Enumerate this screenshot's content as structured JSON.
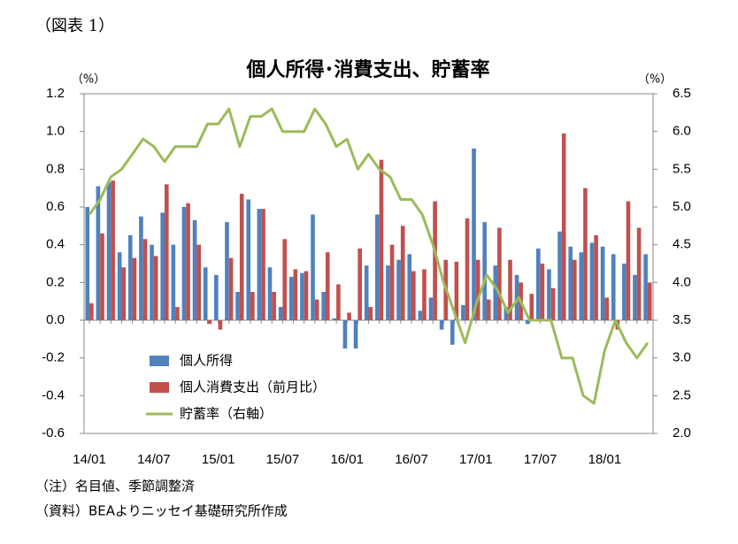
{
  "header": "（図表 1）",
  "notes": [
    "（注）名目値、季節調整済",
    "（資料）BEAよりニッセイ基礎研究所作成"
  ],
  "chart_data": {
    "type": "bar",
    "title": "個人所得･消費支出、貯蓄率",
    "y_unit": "（%）",
    "y2_unit": "（%）",
    "categories": [
      "14/01",
      null,
      null,
      null,
      null,
      null,
      "14/07",
      null,
      null,
      null,
      null,
      null,
      "15/01",
      null,
      null,
      null,
      null,
      null,
      "15/07",
      null,
      null,
      null,
      null,
      null,
      "16/01",
      null,
      null,
      null,
      null,
      null,
      "16/07",
      null,
      null,
      null,
      null,
      null,
      "17/01",
      null,
      null,
      null,
      null,
      null,
      "17/07",
      null,
      null,
      null,
      null,
      null,
      "18/01",
      null,
      null,
      null,
      null
    ],
    "ylim": [
      -0.6,
      1.2
    ],
    "yticks": [
      -0.6,
      -0.4,
      -0.2,
      {
        "value": 0,
        "label": "0.0"
      },
      0.2,
      0.4,
      0.6,
      0.8,
      {
        "value": 1,
        "label": "1.0"
      },
      1.2
    ],
    "y2lim": [
      2,
      6.5
    ],
    "y2ticks": [
      {
        "value": 2,
        "label": "2.0"
      },
      2.5,
      {
        "value": 3,
        "label": "3.0"
      },
      3.5,
      {
        "value": 4,
        "label": "4.0"
      },
      4.5,
      {
        "value": 5,
        "label": "5.0"
      },
      5.5,
      {
        "value": 6,
        "label": "6.0"
      },
      6.5
    ],
    "legend": "lower-left",
    "series": [
      {
        "name": "個人所得",
        "type": "bar",
        "color": "#4f81bd",
        "values": [
          0.6,
          0.71,
          0.73,
          0.36,
          0.45,
          0.55,
          0.4,
          0.57,
          0.4,
          0.6,
          0.53,
          0.28,
          0.24,
          0.52,
          0.15,
          0.64,
          0.59,
          0.28,
          0.07,
          0.23,
          0.25,
          0.56,
          0.15,
          0.01,
          -0.15,
          -0.15,
          0.29,
          0.56,
          0.29,
          0.32,
          0.35,
          0.05,
          0.12,
          -0.05,
          -0.13,
          0.08,
          0.91,
          0.52,
          0.29,
          0.07,
          0.24,
          -0.02,
          0.38,
          0.27,
          0.47,
          0.39,
          0.36,
          0.41,
          0.39,
          0.35,
          0.3,
          0.24,
          0.35
        ]
      },
      {
        "name": "個人消費支出（前月比）",
        "type": "bar",
        "color": "#c0504d",
        "values": [
          0.09,
          0.46,
          0.74,
          0.28,
          0.33,
          0.43,
          0.34,
          0.72,
          0.07,
          0.62,
          0.4,
          -0.02,
          -0.05,
          0.33,
          0.67,
          0.15,
          0.59,
          0.15,
          0.43,
          0.27,
          0.26,
          0.11,
          0.36,
          0.19,
          0.04,
          0.38,
          0.07,
          0.85,
          0.4,
          0.5,
          0.26,
          0.27,
          0.63,
          0.32,
          0.31,
          0.54,
          0.32,
          0.11,
          0.49,
          0.32,
          0.2,
          0.14,
          0.3,
          0.17,
          0.99,
          0.32,
          0.7,
          0.45,
          0.12,
          -0.05,
          0.63,
          0.49,
          0.2
        ]
      },
      {
        "name": "貯蓄率（右軸）",
        "type": "line",
        "axis": "y2",
        "color": "#9bbb59",
        "values": [
          4.9,
          5.1,
          5.4,
          5.5,
          5.7,
          5.9,
          5.8,
          5.6,
          5.8,
          5.8,
          5.8,
          6.1,
          6.1,
          6.3,
          5.8,
          6.2,
          6.2,
          6.3,
          6.0,
          6.0,
          6.0,
          6.3,
          6.1,
          5.8,
          5.9,
          5.5,
          5.7,
          5.5,
          5.4,
          5.1,
          5.1,
          4.9,
          4.5,
          4.0,
          3.6,
          3.2,
          3.7,
          4.1,
          3.9,
          3.6,
          3.8,
          3.5,
          3.5,
          3.5,
          3.0,
          3.0,
          2.5,
          2.4,
          3.1,
          3.5,
          3.2,
          3.0,
          3.2
        ]
      }
    ]
  }
}
